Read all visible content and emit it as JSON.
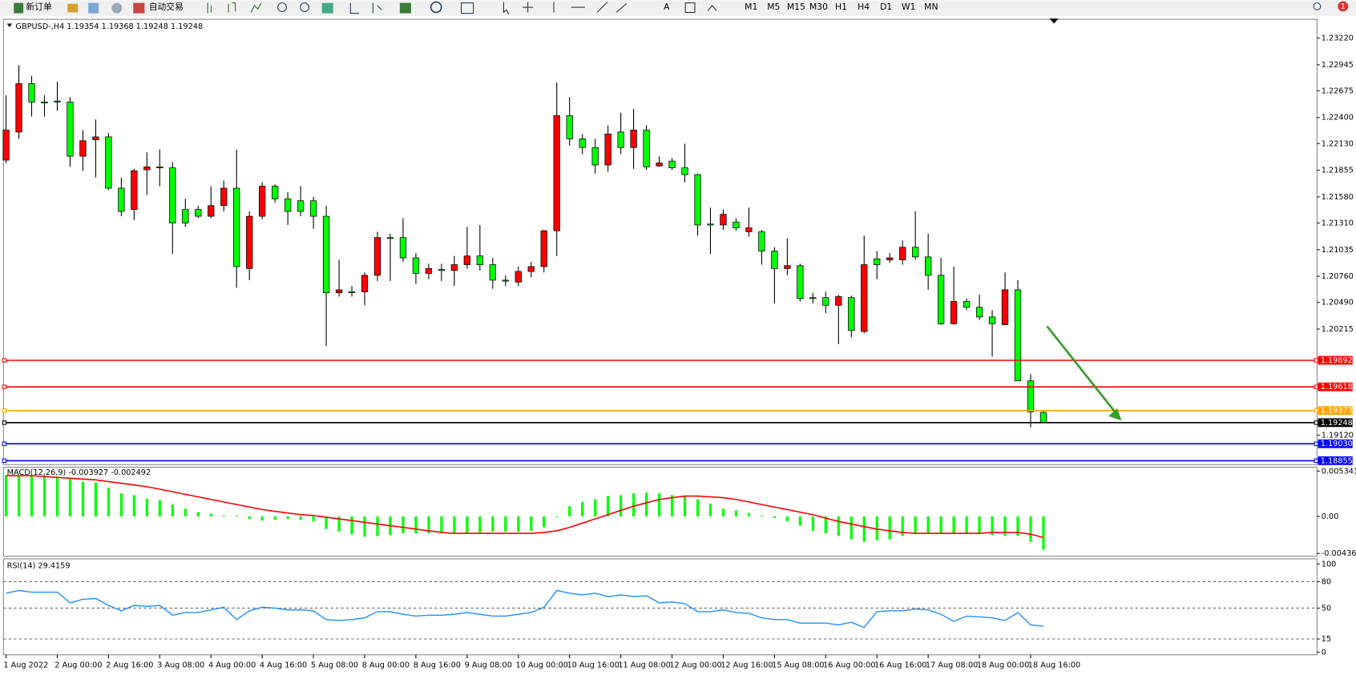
{
  "toolbar": {
    "new_order": "新订单",
    "auto_trading": "自动交易",
    "tools": [
      "A"
    ],
    "timeframes": [
      "M1",
      "M5",
      "M15",
      "M30",
      "H1",
      "H4",
      "D1",
      "W1",
      "MN"
    ],
    "notifications": 1
  },
  "chart_data": [
    {
      "type": "candlestick",
      "symbol": "GBPUSD-,H4",
      "up_color": "#ff0000",
      "down_color": "#00ff00",
      "categories": [
        "1 Aug 2022",
        null,
        null,
        null,
        "2 Aug 00:00",
        null,
        null,
        null,
        "2 Aug 16:00",
        null,
        null,
        null,
        "3 Aug 08:00",
        null,
        null,
        null,
        "4 Aug 00:00",
        null,
        null,
        null,
        "4 Aug 16:00",
        null,
        null,
        null,
        "5 Aug 08:00",
        null,
        null,
        null,
        "8 Aug 00:00",
        null,
        null,
        null,
        "8 Aug 16:00",
        null,
        null,
        null,
        "9 Aug 08:00",
        null,
        null,
        null,
        "10 Aug 00:00",
        null,
        null,
        null,
        "10 Aug 16:00",
        null,
        null,
        null,
        "11 Aug 08:00",
        null,
        null,
        null,
        "12 Aug 00:00",
        null,
        null,
        null,
        "12 Aug 16:00",
        null,
        null,
        null,
        "15 Aug 08:00",
        null,
        null,
        null,
        "16 Aug 00:00",
        null,
        null,
        null,
        "16 Aug 16:00",
        null,
        null,
        null,
        "17 Aug 08:00",
        null,
        null,
        null,
        "18 Aug 00:00",
        null,
        null,
        null,
        "18 Aug 16:00",
        null
      ],
      "ohlc": [
        [
          1.2196,
          1.2263,
          1.2193,
          1.2227
        ],
        [
          1.2225,
          1.2294,
          1.2218,
          1.2275
        ],
        [
          1.2275,
          1.2283,
          1.2241,
          1.2256
        ],
        [
          1.2256,
          1.2263,
          1.2241,
          1.2255
        ],
        [
          1.2257,
          1.2277,
          1.2247,
          1.2256
        ],
        [
          1.2256,
          1.2261,
          1.2189,
          1.22
        ],
        [
          1.22,
          1.2227,
          1.2185,
          1.2216
        ],
        [
          1.2217,
          1.2238,
          1.2178,
          1.222
        ],
        [
          1.222,
          1.2224,
          1.2165,
          1.2167
        ],
        [
          1.2167,
          1.2178,
          1.2138,
          1.2143
        ],
        [
          1.2145,
          1.2187,
          1.2134,
          1.2185
        ],
        [
          1.2186,
          1.2204,
          1.216,
          1.2189
        ],
        [
          1.2189,
          1.2207,
          1.2169,
          1.2188
        ],
        [
          1.2188,
          1.2194,
          1.2099,
          1.2131
        ],
        [
          1.2145,
          1.2156,
          1.2127,
          1.2131
        ],
        [
          1.2145,
          1.2149,
          1.2136,
          1.2138
        ],
        [
          1.2138,
          1.2169,
          1.2136,
          1.2149
        ],
        [
          1.2149,
          1.2175,
          1.2143,
          1.2167
        ],
        [
          1.2167,
          1.2207,
          1.2064,
          1.2086
        ],
        [
          1.2084,
          1.2143,
          1.2072,
          1.2138
        ],
        [
          1.2138,
          1.2173,
          1.2135,
          1.2169
        ],
        [
          1.2169,
          1.2171,
          1.2152,
          1.2156
        ],
        [
          1.2156,
          1.2163,
          1.2129,
          1.2143
        ],
        [
          1.2154,
          1.2169,
          1.2138,
          1.2143
        ],
        [
          1.2154,
          1.2158,
          1.2125,
          1.2138
        ],
        [
          1.2138,
          1.2149,
          1.2004,
          1.2059
        ],
        [
          1.2059,
          1.2093,
          1.2055,
          1.2062
        ],
        [
          1.206,
          1.2066,
          1.2055,
          1.2059
        ],
        [
          1.206,
          1.208,
          1.2046,
          1.2077
        ],
        [
          1.2077,
          1.2122,
          1.2071,
          1.2116
        ],
        [
          1.2116,
          1.212,
          1.2071,
          1.2115
        ],
        [
          1.2116,
          1.2136,
          1.2091,
          1.2095
        ],
        [
          1.2095,
          1.21,
          1.2068,
          1.2079
        ],
        [
          1.2079,
          1.2089,
          1.2073,
          1.2084
        ],
        [
          1.2083,
          1.2089,
          1.2071,
          1.2082
        ],
        [
          1.2082,
          1.2097,
          1.2066,
          1.2088
        ],
        [
          1.2088,
          1.2127,
          1.2084,
          1.2097
        ],
        [
          1.2097,
          1.2129,
          1.2082,
          1.2088
        ],
        [
          1.2088,
          1.2095,
          1.2063,
          1.2072
        ],
        [
          1.2072,
          1.2077,
          1.2066,
          1.2071
        ],
        [
          1.207,
          1.2086,
          1.2066,
          1.2081
        ],
        [
          1.2081,
          1.2091,
          1.2075,
          1.2086
        ],
        [
          1.2086,
          1.2124,
          1.208,
          1.2123
        ],
        [
          1.2123,
          1.2276,
          1.2097,
          1.2242
        ],
        [
          1.2242,
          1.2261,
          1.2211,
          1.2218
        ],
        [
          1.2218,
          1.2223,
          1.2202,
          1.2209
        ],
        [
          1.2209,
          1.2218,
          1.2182,
          1.2191
        ],
        [
          1.2191,
          1.2232,
          1.2184,
          1.2223
        ],
        [
          1.2225,
          1.2245,
          1.2202,
          1.2209
        ],
        [
          1.2209,
          1.2249,
          1.2187,
          1.2227
        ],
        [
          1.2227,
          1.2232,
          1.2186,
          1.2189
        ],
        [
          1.219,
          1.22,
          1.2189,
          1.2193
        ],
        [
          1.2195,
          1.2198,
          1.2186,
          1.2188
        ],
        [
          1.2188,
          1.2213,
          1.2173,
          1.2181
        ],
        [
          1.2181,
          1.2182,
          1.2118,
          1.2129
        ],
        [
          1.213,
          1.2147,
          1.2099,
          1.2129
        ],
        [
          1.2129,
          1.2145,
          1.2124,
          1.214
        ],
        [
          1.2132,
          1.2136,
          1.2123,
          1.2126
        ],
        [
          1.2122,
          1.2147,
          1.2117,
          1.2126
        ],
        [
          1.2122,
          1.2124,
          1.2088,
          1.2102
        ],
        [
          1.2102,
          1.2106,
          1.2048,
          1.2084
        ],
        [
          1.2084,
          1.2115,
          1.2077,
          1.2087
        ],
        [
          1.2087,
          1.2089,
          1.205,
          1.2053
        ],
        [
          1.2054,
          1.2059,
          1.2048,
          1.2053
        ],
        [
          1.2054,
          1.206,
          1.2038,
          1.2046
        ],
        [
          1.2046,
          1.2057,
          1.2006,
          1.2055
        ],
        [
          1.2054,
          1.2056,
          1.2013,
          1.202
        ],
        [
          1.2019,
          1.2118,
          1.2017,
          1.2088
        ],
        [
          1.2094,
          1.2102,
          1.2073,
          1.2088
        ],
        [
          1.2093,
          1.21,
          1.209,
          1.2095
        ],
        [
          1.2093,
          1.2113,
          1.2088,
          1.2106
        ],
        [
          1.2106,
          1.2143,
          1.2093,
          1.2096
        ],
        [
          1.2096,
          1.212,
          1.2062,
          1.2077
        ],
        [
          1.2077,
          1.2095,
          1.2026,
          1.2027
        ],
        [
          1.2027,
          1.2086,
          1.2026,
          1.205
        ],
        [
          1.205,
          1.2053,
          1.2041,
          1.2044
        ],
        [
          1.2044,
          1.2057,
          1.2031,
          1.2034
        ],
        [
          1.2034,
          1.2041,
          1.1993,
          1.2027
        ],
        [
          1.2026,
          1.208,
          1.2026,
          1.2062
        ],
        [
          1.2062,
          1.2072,
          1.1968,
          1.1968
        ],
        [
          1.1968,
          1.1975,
          1.192,
          1.1936
        ],
        [
          1.19354,
          1.19368,
          1.19248,
          1.19248
        ]
      ],
      "ylim": [
        1.18815,
        1.23414
      ],
      "yticks": [
        {
          "value": 1.2322,
          "label": "1.23220"
        },
        1.22945,
        1.22675,
        {
          "value": 1.224,
          "label": "1.22400"
        },
        {
          "value": 1.2213,
          "label": "1.22130"
        },
        1.21855,
        {
          "value": 1.2158,
          "label": "1.21580"
        },
        {
          "value": 1.2131,
          "label": "1.21310"
        },
        1.21035,
        {
          "value": 1.2076,
          "label": "1.20760"
        },
        {
          "value": 1.2049,
          "label": "1.20490"
        },
        1.20215,
        {
          "value": 1.1912,
          "label": "1.19120"
        }
      ],
      "lines": [
        {
          "value": 1.19892,
          "label": "1.19892",
          "color": "#ff0000"
        },
        {
          "value": 1.19618,
          "label": "1.19618",
          "color": "#ff0000"
        },
        {
          "value": 1.19373,
          "label": "1.19373",
          "color": "#ffa500"
        },
        {
          "value": 1.19248,
          "label": "1.19248",
          "color": "#000000"
        },
        {
          "value": 1.1903,
          "label": "1.19030",
          "color": "#0000ff"
        },
        {
          "value": 1.18855,
          "label": "1.18855",
          "color": "#0000ff"
        }
      ]
    },
    {
      "type": "macd",
      "title": "MACD(12,26,9)",
      "histogram": {
        "color": "#00ff00",
        "values": [
          0.0048,
          0.0048,
          0.0048,
          0.0048,
          0.0046,
          0.0044,
          0.0041,
          0.004,
          0.0034,
          0.0027,
          0.0025,
          0.0021,
          0.0019,
          0.0014,
          0.0009,
          0.0005,
          0.0003,
          0.0001,
          0.0001,
          -0.0003,
          -0.0005,
          -0.0004,
          -0.0003,
          -0.0004,
          -0.0006,
          -0.0015,
          -0.0018,
          -0.0021,
          -0.0024,
          -0.0023,
          -0.0022,
          -0.002,
          -0.002,
          -0.002,
          -0.002,
          -0.002,
          -0.002,
          -0.0019,
          -0.0018,
          -0.0018,
          -0.0018,
          -0.0017,
          -0.0013,
          -0.0001,
          0.0012,
          0.0017,
          0.002,
          0.0024,
          0.0025,
          0.0027,
          0.0028,
          0.0027,
          0.0025,
          0.0024,
          0.002,
          0.0015,
          0.0009,
          0.0007,
          0.0004,
          0.0001,
          -0.0002,
          -0.0006,
          -0.0011,
          -0.0017,
          -0.002,
          -0.0023,
          -0.0027,
          -0.003,
          -0.0028,
          -0.0027,
          -0.0023,
          -0.0021,
          -0.002,
          -0.002,
          -0.0021,
          -0.0021,
          -0.0021,
          -0.0022,
          -0.0023,
          -0.0023,
          -0.003,
          -0.003927
        ]
      },
      "signal": {
        "color": "#ff0000",
        "values": [
          0.0048,
          0.0048,
          0.0048,
          0.0047,
          0.0046,
          0.0045,
          0.0044,
          0.0043,
          0.0041,
          0.0039,
          0.0037,
          0.0035,
          0.0032,
          0.0029,
          0.0026,
          0.0023,
          0.002,
          0.0017,
          0.0014,
          0.0011,
          0.0008,
          0.0006,
          0.0004,
          0.0002,
          0.0001,
          -0.0001,
          -0.0003,
          -0.0005,
          -0.0007,
          -0.0009,
          -0.0011,
          -0.0013,
          -0.0015,
          -0.0017,
          -0.0019,
          -0.002,
          -0.002,
          -0.002,
          -0.002,
          -0.002,
          -0.002,
          -0.002,
          -0.0019,
          -0.0017,
          -0.0013,
          -0.0008,
          -0.0003,
          0.0002,
          0.0007,
          0.0012,
          0.0016,
          0.002,
          0.0022,
          0.0024,
          0.0024,
          0.0023,
          0.0022,
          0.002,
          0.0017,
          0.0014,
          0.0011,
          0.0008,
          0.0005,
          0.0002,
          -0.0002,
          -0.0006,
          -0.0009,
          -0.0012,
          -0.0015,
          -0.0017,
          -0.0019,
          -0.002,
          -0.002,
          -0.002,
          -0.002,
          -0.002,
          -0.002,
          -0.0019,
          -0.0019,
          -0.0019,
          -0.0021,
          -0.002492
        ]
      },
      "ylim": [
        -0.0047,
        0.0058
      ],
      "yticks": [
        0.005341,
        {
          "value": 0,
          "label": "0.00"
        },
        -0.004368
      ]
    },
    {
      "type": "line",
      "title": "RSI(14)",
      "color": "#1e90ff",
      "values": [
        67,
        70,
        68,
        68,
        68,
        56,
        60,
        61,
        53,
        47,
        53,
        52,
        53,
        42,
        45,
        45,
        48,
        51,
        37,
        47,
        51,
        50,
        48,
        48,
        47,
        37,
        36,
        37,
        39,
        46,
        46,
        43,
        41,
        42,
        42,
        43,
        45,
        43,
        41,
        41,
        43,
        45,
        51,
        70,
        67,
        65,
        67,
        63,
        65,
        63,
        64,
        56,
        57,
        55,
        46,
        46,
        48,
        45,
        44,
        39,
        37,
        37,
        33,
        33,
        33,
        31,
        34,
        28,
        46,
        47,
        47,
        49,
        48,
        43,
        35,
        41,
        40,
        39,
        36,
        45,
        31,
        29.4159
      ],
      "ylim": [
        0,
        100
      ],
      "yticks": [
        100,
        80,
        50,
        15,
        0
      ]
    }
  ]
}
